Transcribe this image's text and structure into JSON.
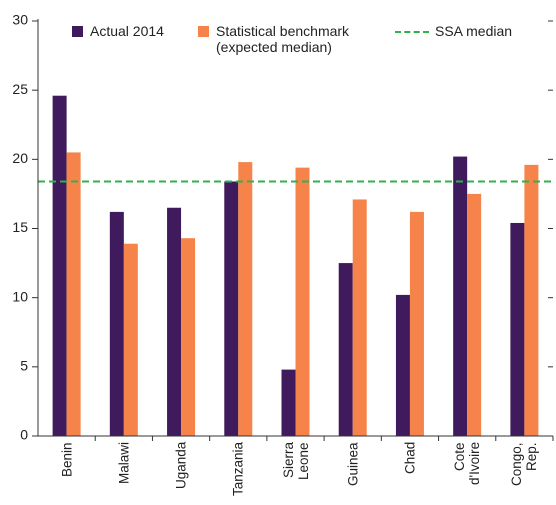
{
  "chart_data": {
    "type": "bar",
    "categories": [
      "Benin",
      "Malawi",
      "Uganda",
      "Tanzania",
      "Sierra Leone",
      "Guinea",
      "Chad",
      "Cote d'Ivoire",
      "Congo, Rep."
    ],
    "series": [
      {
        "name": "Actual 2014",
        "color": "#3f1a5c",
        "values": [
          24.6,
          16.2,
          16.5,
          18.4,
          4.8,
          12.5,
          10.2,
          20.2,
          15.4
        ]
      },
      {
        "name": "Statistical benchmark (expected median)",
        "color": "#f6844a",
        "values": [
          20.5,
          13.9,
          14.3,
          19.8,
          19.4,
          17.1,
          16.2,
          17.5,
          19.6
        ]
      }
    ],
    "reference_line": {
      "name": "SSA median",
      "value": 18.4,
      "color": "#2db34a"
    },
    "ylim": [
      0,
      30
    ],
    "yticks": [
      0,
      5,
      10,
      15,
      20,
      25,
      30
    ]
  }
}
